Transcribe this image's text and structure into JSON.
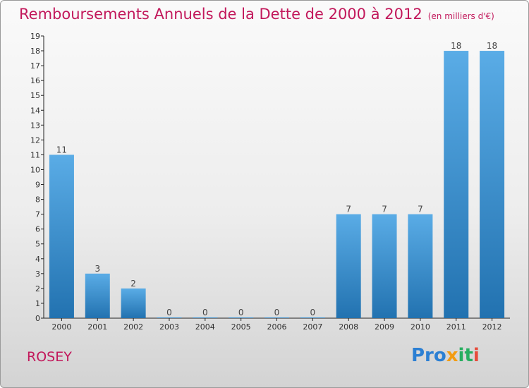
{
  "title": "Remboursements Annuels de la Dette de 2000 à 2012",
  "subtitle": "(en milliers d'€)",
  "city": "ROSEY",
  "logo": {
    "text": "Proxiti",
    "parts": [
      "Pro",
      "x",
      "it",
      "i"
    ],
    "colors": [
      "#2b7fd3",
      "#f39c12",
      "#27ae60",
      "#e74c3c"
    ]
  },
  "colors": {
    "title": "#c2185b",
    "bar_top": "#5aace6",
    "bar_bottom": "#2272b0"
  },
  "chart_data": {
    "type": "bar",
    "categories": [
      "2000",
      "2001",
      "2002",
      "2003",
      "2004",
      "2005",
      "2006",
      "2007",
      "2008",
      "2009",
      "2010",
      "2011",
      "2012"
    ],
    "values": [
      11,
      3,
      2,
      0,
      0,
      0,
      0,
      0,
      7,
      7,
      7,
      18,
      18
    ],
    "ylim": [
      0,
      19
    ],
    "yticks": [
      0,
      1,
      2,
      3,
      4,
      5,
      6,
      7,
      8,
      9,
      10,
      11,
      12,
      13,
      14,
      15,
      16,
      17,
      18,
      19
    ],
    "data_labels": [
      "11",
      "3",
      "2",
      "0",
      "0",
      "0",
      "0",
      "0",
      "7",
      "7",
      "7",
      "18",
      "18"
    ],
    "grid": false,
    "legend": "none"
  }
}
